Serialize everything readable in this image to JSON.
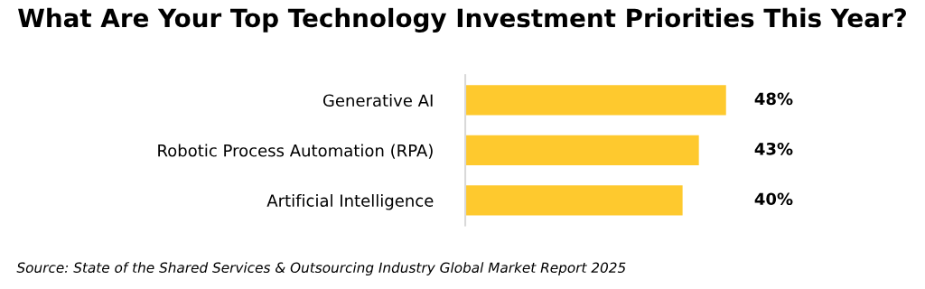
{
  "chart_data": {
    "type": "bar",
    "orientation": "horizontal",
    "title": "What Are Your Top Technology Investment Priorities This Year?",
    "categories": [
      "Generative AI",
      "Robotic Process Automation (RPA)",
      "Artificial Intelligence"
    ],
    "values": [
      48,
      43,
      40
    ],
    "value_labels": [
      "48%",
      "43%",
      "40%"
    ],
    "color": "#fec92e",
    "tick_labels": "y",
    "grid": false,
    "legend": false,
    "annotations": [
      "Source: State of the Shared Services & Outsourcing Industry Global Market Report 2025"
    ]
  }
}
